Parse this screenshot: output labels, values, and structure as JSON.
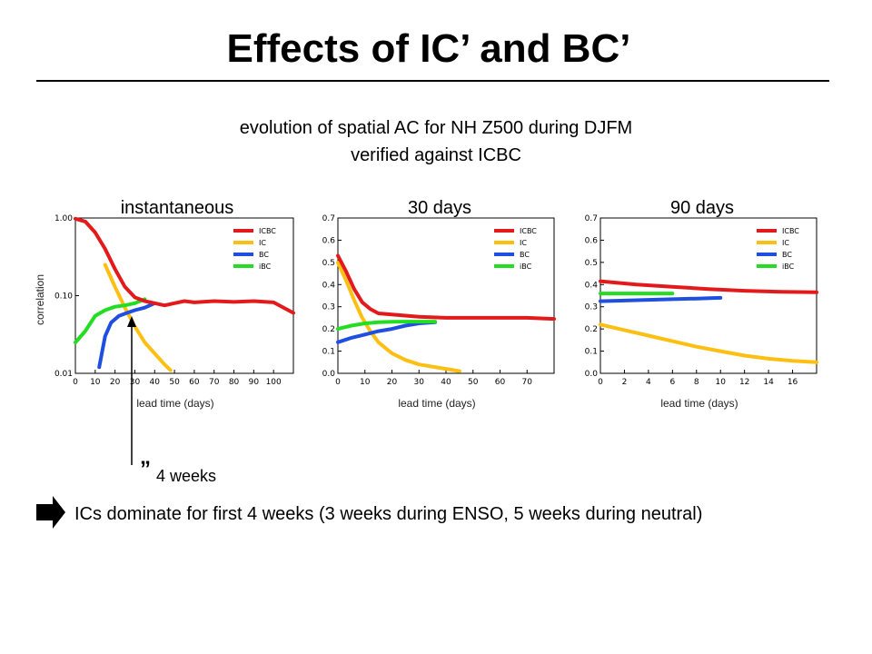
{
  "slide": {
    "title": "Effects of IC’ and BC’",
    "subtitle_line1": "evolution of spatial AC for NH Z500 during DJFM",
    "subtitle_line2": "verified against ICBC",
    "annotation_mark": "”",
    "annotation_text": "4 weeks",
    "conclusion": "ICs dominate for first 4 weeks (3 weeks during ENSO, 5 weeks during neutral)",
    "bullet_icon": "right-arrow-icon"
  },
  "colors": {
    "ICBC": "#e31a1c",
    "IC": "#fdbf11",
    "BC": "#1f4fe0",
    "iBC": "#22dd22",
    "noise": "#6f8fd0"
  },
  "chart_data": [
    {
      "type": "line",
      "title": "instantaneous",
      "xlabel": "lead time (days)",
      "ylabel": "correlation",
      "yscale": "log",
      "xlim": [
        0,
        110
      ],
      "ylim": [
        0.01,
        1.0
      ],
      "xticks": [
        0,
        10,
        20,
        30,
        40,
        50,
        60,
        70,
        80,
        90,
        100
      ],
      "yticks": [
        0.01,
        0.1,
        1.0
      ],
      "ytick_labels": [
        "0.01",
        "0.10",
        "1.00"
      ],
      "legend": {
        "position": "top-right",
        "entries": [
          "ICBC",
          "IC",
          "BC",
          "iBC"
        ]
      },
      "series": [
        {
          "name": "ICBC",
          "x": [
            0,
            5,
            10,
            15,
            20,
            25,
            30,
            35,
            40,
            45,
            50,
            55,
            60,
            70,
            80,
            90,
            100,
            110
          ],
          "y": [
            0.98,
            0.9,
            0.65,
            0.4,
            0.22,
            0.13,
            0.095,
            0.085,
            0.08,
            0.075,
            0.08,
            0.085,
            0.082,
            0.085,
            0.083,
            0.085,
            0.082,
            0.06
          ]
        },
        {
          "name": "IC",
          "x": [
            15,
            20,
            25,
            30,
            35,
            40,
            45,
            48
          ],
          "y": [
            0.25,
            0.13,
            0.07,
            0.04,
            0.025,
            0.018,
            0.013,
            0.011
          ]
        },
        {
          "name": "BC",
          "x": [
            12,
            15,
            18,
            22,
            26,
            30,
            35,
            40
          ],
          "y": [
            0.012,
            0.03,
            0.045,
            0.055,
            0.06,
            0.065,
            0.07,
            0.08
          ]
        },
        {
          "name": "iBC",
          "x": [
            0,
            5,
            10,
            15,
            20,
            25,
            30,
            35
          ],
          "y": [
            0.025,
            0.035,
            0.055,
            0.065,
            0.072,
            0.075,
            0.08,
            0.09
          ]
        }
      ]
    },
    {
      "type": "line",
      "title": "30 days",
      "xlabel": "lead time (days)",
      "xlim": [
        0,
        80
      ],
      "ylim": [
        0,
        0.7
      ],
      "xticks": [
        0,
        10,
        20,
        30,
        40,
        50,
        60,
        70
      ],
      "yticks": [
        0,
        0.1,
        0.2,
        0.3,
        0.4,
        0.5,
        0.6,
        0.7
      ],
      "ytick_labels": [
        "0.0",
        "0.1",
        "0.2",
        "0.3",
        "0.4",
        "0.5",
        "0.6",
        "0.7"
      ],
      "legend": {
        "position": "top-right",
        "entries": [
          "ICBC",
          "IC",
          "BC",
          "iBC"
        ]
      },
      "series": [
        {
          "name": "ICBC",
          "x": [
            0,
            3,
            6,
            9,
            12,
            15,
            20,
            25,
            30,
            40,
            50,
            60,
            70,
            80
          ],
          "y": [
            0.53,
            0.46,
            0.38,
            0.32,
            0.29,
            0.27,
            0.265,
            0.26,
            0.255,
            0.25,
            0.25,
            0.25,
            0.25,
            0.245
          ]
        },
        {
          "name": "IC",
          "x": [
            0,
            3,
            6,
            9,
            12,
            15,
            20,
            25,
            30,
            35,
            40,
            45
          ],
          "y": [
            0.5,
            0.42,
            0.33,
            0.25,
            0.19,
            0.14,
            0.09,
            0.06,
            0.04,
            0.03,
            0.02,
            0.01
          ]
        },
        {
          "name": "BC",
          "x": [
            0,
            5,
            10,
            15,
            20,
            25,
            30,
            36
          ],
          "y": [
            0.14,
            0.16,
            0.175,
            0.19,
            0.2,
            0.215,
            0.225,
            0.23
          ]
        },
        {
          "name": "iBC",
          "x": [
            0,
            5,
            10,
            15,
            20,
            25,
            30,
            36
          ],
          "y": [
            0.2,
            0.215,
            0.225,
            0.23,
            0.232,
            0.233,
            0.233,
            0.233
          ]
        }
      ]
    },
    {
      "type": "line",
      "title": "90 days",
      "xlabel": "lead time (days)",
      "xlim": [
        0,
        18
      ],
      "ylim": [
        0,
        0.7
      ],
      "xticks": [
        0,
        2,
        4,
        6,
        8,
        10,
        12,
        14,
        16
      ],
      "yticks": [
        0,
        0.1,
        0.2,
        0.3,
        0.4,
        0.5,
        0.6,
        0.7
      ],
      "ytick_labels": [
        "0.0",
        "0.1",
        "0.2",
        "0.3",
        "0.4",
        "0.5",
        "0.6",
        "0.7"
      ],
      "legend": {
        "position": "top-right",
        "entries": [
          "ICBC",
          "IC",
          "BC",
          "iBC"
        ]
      },
      "series": [
        {
          "name": "ICBC",
          "x": [
            0,
            3,
            6,
            9,
            12,
            15,
            18
          ],
          "y": [
            0.415,
            0.4,
            0.39,
            0.38,
            0.372,
            0.367,
            0.365
          ]
        },
        {
          "name": "IC",
          "x": [
            0,
            2,
            4,
            6,
            8,
            10,
            12,
            14,
            16,
            18
          ],
          "y": [
            0.22,
            0.195,
            0.17,
            0.145,
            0.12,
            0.1,
            0.08,
            0.066,
            0.056,
            0.05
          ]
        },
        {
          "name": "BC",
          "x": [
            0,
            2,
            4,
            6,
            8,
            10
          ],
          "y": [
            0.325,
            0.328,
            0.331,
            0.334,
            0.337,
            0.34
          ]
        },
        {
          "name": "iBC",
          "x": [
            0,
            2,
            4,
            6
          ],
          "y": [
            0.36,
            0.36,
            0.36,
            0.36
          ]
        }
      ]
    }
  ]
}
